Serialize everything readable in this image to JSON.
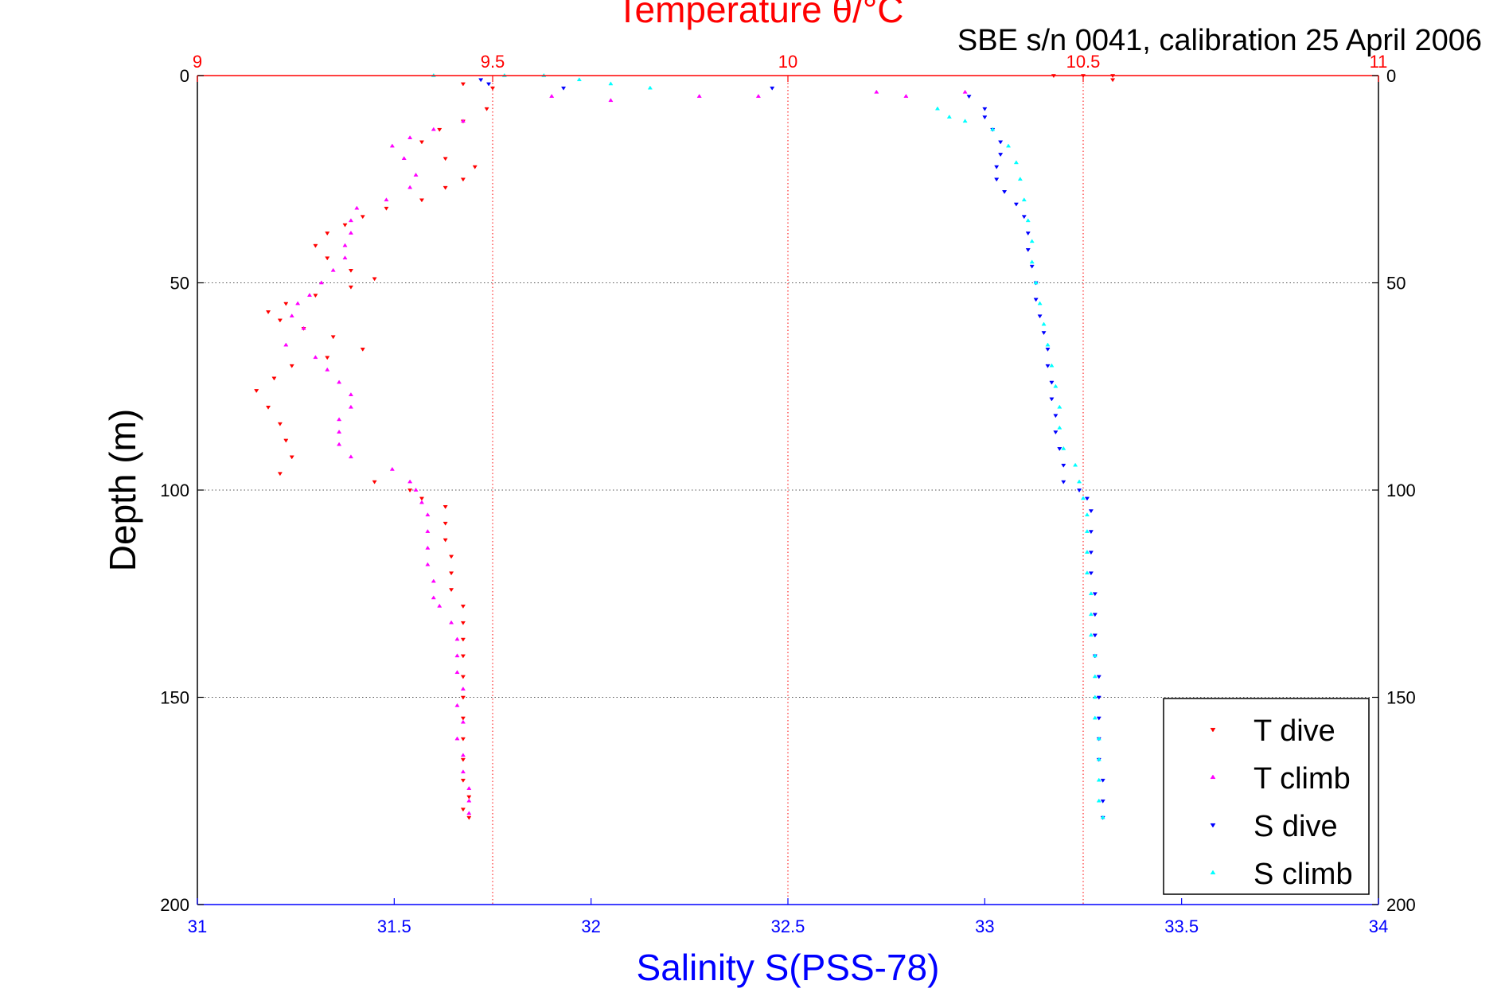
{
  "chart_data": {
    "type": "scatter",
    "title": "Temperature θ/°C",
    "annotation": "SBE s/n 0041, calibration 25 April 2006",
    "ylabel": "Depth (m)",
    "xlabel_bottom": "Salinity S(PSS-78)",
    "xlabel_top": "Temperature θ/°C",
    "ylim": [
      0,
      200
    ],
    "y_reversed": true,
    "xlim_bottom": [
      31,
      34
    ],
    "xlim_top": [
      9,
      11
    ],
    "y_ticks": [
      0,
      50,
      100,
      150,
      200
    ],
    "y_tick_labels": [
      "0",
      "50",
      "100",
      "150",
      "200"
    ],
    "x_bottom_ticks": [
      31,
      31.5,
      32,
      32.5,
      33,
      33.5,
      34
    ],
    "x_bottom_tick_labels": [
      "31",
      "31.5",
      "32",
      "32.5",
      "33",
      "33.5",
      "34"
    ],
    "x_top_ticks": [
      9,
      9.5,
      10,
      10.5,
      11
    ],
    "x_top_tick_labels": [
      "9",
      "9.5",
      "10",
      "10.5",
      "11"
    ],
    "grid": {
      "horizontal": true,
      "vertical_top_axis": true
    },
    "legend_position": "bottom-right",
    "colors": {
      "temperature_axis": "#ff0000",
      "salinity_axis": "#0000ff",
      "grid_h": "#555555",
      "grid_v": "#ff0000"
    },
    "series": [
      {
        "name": "T dive",
        "axis": "top",
        "marker": "triangle-down",
        "color": "#ff0000",
        "points": [
          [
            9.49,
            8
          ],
          [
            9.45,
            11
          ],
          [
            9.41,
            13
          ],
          [
            9.38,
            16
          ],
          [
            9.42,
            20
          ],
          [
            9.47,
            22
          ],
          [
            9.45,
            25
          ],
          [
            9.42,
            27
          ],
          [
            9.38,
            30
          ],
          [
            9.32,
            32
          ],
          [
            9.28,
            34
          ],
          [
            9.25,
            36
          ],
          [
            9.22,
            38
          ],
          [
            9.2,
            41
          ],
          [
            9.22,
            44
          ],
          [
            9.26,
            47
          ],
          [
            9.3,
            49
          ],
          [
            9.26,
            51
          ],
          [
            9.2,
            53
          ],
          [
            9.15,
            55
          ],
          [
            9.12,
            57
          ],
          [
            9.14,
            59
          ],
          [
            9.18,
            61
          ],
          [
            9.23,
            63
          ],
          [
            9.28,
            66
          ],
          [
            9.22,
            68
          ],
          [
            9.16,
            70
          ],
          [
            9.13,
            73
          ],
          [
            9.1,
            76
          ],
          [
            9.12,
            80
          ],
          [
            9.14,
            84
          ],
          [
            9.15,
            88
          ],
          [
            9.16,
            92
          ],
          [
            9.14,
            96
          ],
          [
            9.3,
            98
          ],
          [
            9.36,
            100
          ],
          [
            9.38,
            102
          ],
          [
            9.42,
            104
          ],
          [
            9.42,
            108
          ],
          [
            9.42,
            112
          ],
          [
            9.43,
            116
          ],
          [
            9.43,
            120
          ],
          [
            9.43,
            124
          ],
          [
            9.45,
            128
          ],
          [
            9.45,
            132
          ],
          [
            9.45,
            136
          ],
          [
            9.45,
            140
          ],
          [
            9.45,
            145
          ],
          [
            9.45,
            150
          ],
          [
            9.45,
            155
          ],
          [
            9.45,
            160
          ],
          [
            9.45,
            165
          ],
          [
            9.45,
            170
          ],
          [
            9.46,
            174
          ],
          [
            9.45,
            177
          ],
          [
            9.46,
            179
          ],
          [
            10.45,
            0
          ],
          [
            10.5,
            0
          ],
          [
            10.55,
            0
          ],
          [
            10.55,
            1
          ],
          [
            9.45,
            2
          ],
          [
            9.5,
            3
          ]
        ]
      },
      {
        "name": "T climb",
        "axis": "top",
        "marker": "triangle-up",
        "color": "#ff00ff",
        "points": [
          [
            9.45,
            11
          ],
          [
            9.4,
            13
          ],
          [
            9.36,
            15
          ],
          [
            9.33,
            17
          ],
          [
            9.35,
            20
          ],
          [
            9.37,
            24
          ],
          [
            9.36,
            27
          ],
          [
            9.32,
            30
          ],
          [
            9.27,
            32
          ],
          [
            9.26,
            35
          ],
          [
            9.26,
            38
          ],
          [
            9.25,
            41
          ],
          [
            9.25,
            44
          ],
          [
            9.23,
            47
          ],
          [
            9.21,
            50
          ],
          [
            9.19,
            53
          ],
          [
            9.17,
            55
          ],
          [
            9.16,
            58
          ],
          [
            9.18,
            61
          ],
          [
            9.15,
            65
          ],
          [
            9.2,
            68
          ],
          [
            9.22,
            71
          ],
          [
            9.24,
            74
          ],
          [
            9.26,
            77
          ],
          [
            9.26,
            80
          ],
          [
            9.24,
            83
          ],
          [
            9.24,
            86
          ],
          [
            9.24,
            89
          ],
          [
            9.26,
            92
          ],
          [
            9.33,
            95
          ],
          [
            9.36,
            98
          ],
          [
            9.37,
            100
          ],
          [
            9.38,
            103
          ],
          [
            9.39,
            106
          ],
          [
            9.39,
            110
          ],
          [
            9.39,
            114
          ],
          [
            9.39,
            118
          ],
          [
            9.4,
            122
          ],
          [
            9.4,
            126
          ],
          [
            9.41,
            128
          ],
          [
            9.43,
            132
          ],
          [
            9.44,
            136
          ],
          [
            9.44,
            140
          ],
          [
            9.44,
            144
          ],
          [
            9.45,
            148
          ],
          [
            9.44,
            152
          ],
          [
            9.45,
            156
          ],
          [
            9.44,
            160
          ],
          [
            9.45,
            164
          ],
          [
            9.45,
            168
          ],
          [
            9.46,
            172
          ],
          [
            9.46,
            175
          ],
          [
            9.46,
            178
          ],
          [
            9.6,
            5
          ],
          [
            9.7,
            6
          ],
          [
            9.85,
            5
          ],
          [
            9.95,
            5
          ],
          [
            10.15,
            4
          ],
          [
            10.2,
            5
          ],
          [
            10.3,
            4
          ]
        ]
      },
      {
        "name": "S dive",
        "axis": "bottom",
        "marker": "triangle-down",
        "color": "#0000ff",
        "points": [
          [
            31.72,
            1
          ],
          [
            31.74,
            2
          ],
          [
            31.93,
            3
          ],
          [
            32.46,
            3
          ],
          [
            32.96,
            5
          ],
          [
            33.0,
            8
          ],
          [
            33.0,
            10
          ],
          [
            33.02,
            13
          ],
          [
            33.04,
            16
          ],
          [
            33.04,
            19
          ],
          [
            33.03,
            22
          ],
          [
            33.03,
            25
          ],
          [
            33.05,
            28
          ],
          [
            33.08,
            31
          ],
          [
            33.1,
            34
          ],
          [
            33.11,
            38
          ],
          [
            33.11,
            42
          ],
          [
            33.12,
            46
          ],
          [
            33.13,
            50
          ],
          [
            33.13,
            54
          ],
          [
            33.14,
            58
          ],
          [
            33.15,
            62
          ],
          [
            33.16,
            66
          ],
          [
            33.16,
            70
          ],
          [
            33.17,
            74
          ],
          [
            33.17,
            78
          ],
          [
            33.18,
            82
          ],
          [
            33.18,
            86
          ],
          [
            33.19,
            90
          ],
          [
            33.2,
            94
          ],
          [
            33.2,
            98
          ],
          [
            33.24,
            100
          ],
          [
            33.26,
            102
          ],
          [
            33.27,
            105
          ],
          [
            33.27,
            110
          ],
          [
            33.27,
            115
          ],
          [
            33.27,
            120
          ],
          [
            33.28,
            125
          ],
          [
            33.28,
            130
          ],
          [
            33.28,
            135
          ],
          [
            33.28,
            140
          ],
          [
            33.29,
            145
          ],
          [
            33.29,
            150
          ],
          [
            33.29,
            155
          ],
          [
            33.29,
            160
          ],
          [
            33.29,
            165
          ],
          [
            33.3,
            170
          ],
          [
            33.3,
            175
          ],
          [
            33.3,
            179
          ]
        ]
      },
      {
        "name": "S climb",
        "axis": "bottom",
        "marker": "triangle-up",
        "color": "#00ffff",
        "points": [
          [
            31.6,
            0
          ],
          [
            31.78,
            0
          ],
          [
            31.88,
            0
          ],
          [
            31.97,
            1
          ],
          [
            32.05,
            2
          ],
          [
            32.15,
            3
          ],
          [
            32.88,
            8
          ],
          [
            32.91,
            10
          ],
          [
            32.95,
            11
          ],
          [
            33.02,
            13
          ],
          [
            33.06,
            17
          ],
          [
            33.08,
            21
          ],
          [
            33.09,
            25
          ],
          [
            33.1,
            30
          ],
          [
            33.11,
            35
          ],
          [
            33.12,
            40
          ],
          [
            33.12,
            45
          ],
          [
            33.13,
            50
          ],
          [
            33.14,
            55
          ],
          [
            33.15,
            60
          ],
          [
            33.16,
            65
          ],
          [
            33.17,
            70
          ],
          [
            33.18,
            75
          ],
          [
            33.19,
            80
          ],
          [
            33.19,
            85
          ],
          [
            33.2,
            90
          ],
          [
            33.23,
            94
          ],
          [
            33.24,
            98
          ],
          [
            33.25,
            102
          ],
          [
            33.26,
            106
          ],
          [
            33.26,
            110
          ],
          [
            33.26,
            115
          ],
          [
            33.26,
            120
          ],
          [
            33.27,
            125
          ],
          [
            33.27,
            130
          ],
          [
            33.27,
            135
          ],
          [
            33.28,
            140
          ],
          [
            33.28,
            145
          ],
          [
            33.28,
            150
          ],
          [
            33.28,
            155
          ],
          [
            33.29,
            160
          ],
          [
            33.29,
            165
          ],
          [
            33.29,
            170
          ],
          [
            33.29,
            175
          ],
          [
            33.3,
            179
          ]
        ]
      }
    ]
  }
}
